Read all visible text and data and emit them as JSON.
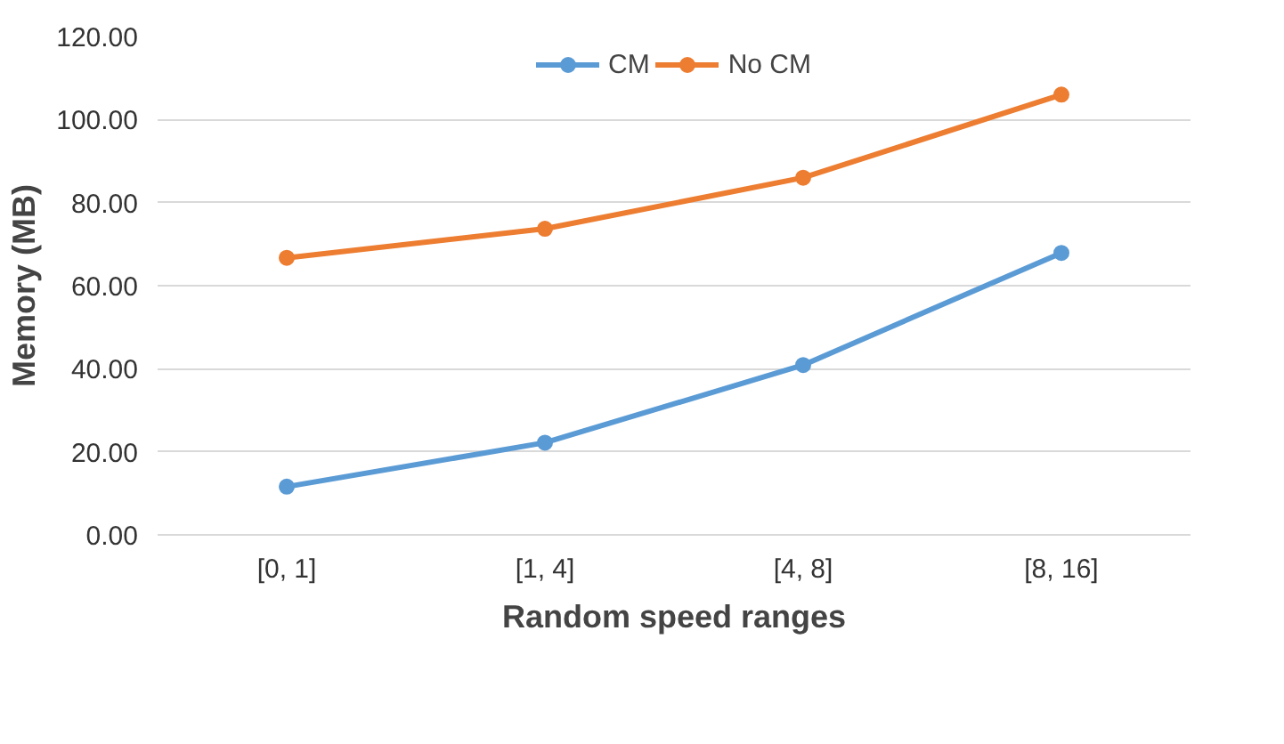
{
  "chart_data": {
    "type": "line",
    "xlabel": "Random speed ranges",
    "ylabel": "Memory (MB)",
    "categories": [
      "[0, 1]",
      "[1, 4]",
      "[4, 8]",
      "[8, 16]"
    ],
    "series": [
      {
        "name": "CM",
        "color": "#5b9bd5",
        "values": [
          11.6,
          22.2,
          40.9,
          67.9
        ]
      },
      {
        "name": "No CM",
        "color": "#ed7d31",
        "values": [
          66.7,
          73.7,
          86.0,
          106.0
        ]
      }
    ],
    "ylim": [
      0,
      120
    ],
    "yticks": [
      {
        "value": 0,
        "label": "0.00"
      },
      {
        "value": 20,
        "label": "20.00"
      },
      {
        "value": 40,
        "label": "40.00"
      },
      {
        "value": 60,
        "label": "60.00"
      },
      {
        "value": 80,
        "label": "80.00"
      },
      {
        "value": 100,
        "label": "100.00"
      },
      {
        "value": 120,
        "label": "120.00"
      }
    ],
    "grid": "y",
    "legend": "top",
    "marker": "circle",
    "line_style": "solid"
  }
}
